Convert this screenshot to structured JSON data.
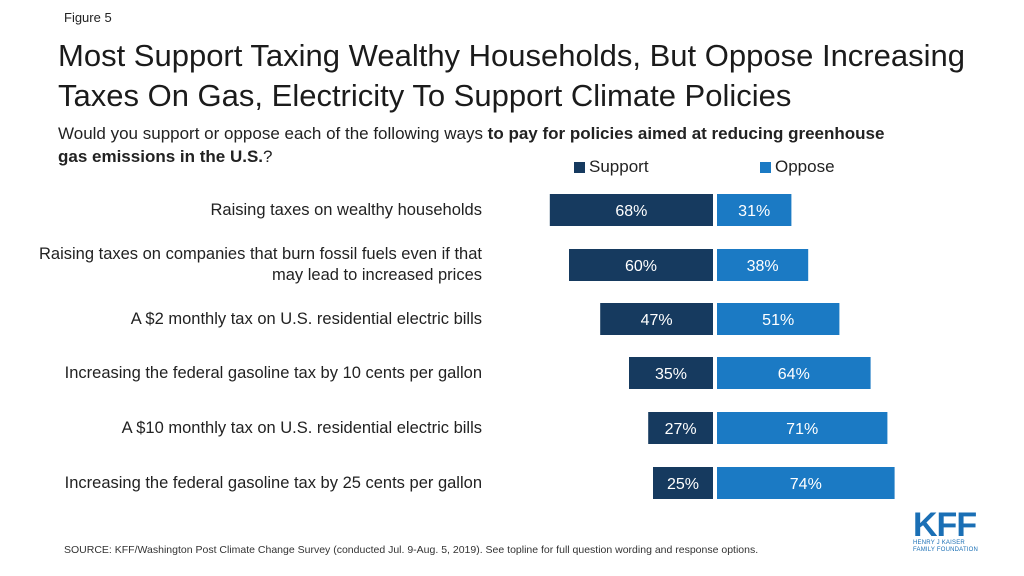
{
  "figure_label": "Figure 5",
  "title": "Most Support Taxing Wealthy Households, But Oppose Increasing Taxes On Gas, Electricity To Support Climate Policies",
  "subtitle": {
    "pre": "Would you support or oppose each of the following ways ",
    "bold": "to pay for policies aimed at reducing greenhouse gas emissions in the U.S.",
    "post": "?"
  },
  "colors": {
    "support": "#163a5f",
    "oppose": "#1b7ac4",
    "label_text": "#ffffff"
  },
  "chart_data": {
    "type": "bar",
    "orientation": "horizontal-diverging",
    "categories": [
      "Raising taxes on wealthy households",
      "Raising taxes on companies that burn fossil fuels even if that may lead to increased prices",
      "A $2 monthly tax on U.S. residential electric bills",
      "Increasing the federal gasoline tax by 10 cents per gallon",
      "A $10 monthly tax on U.S. residential electric bills",
      "Increasing the federal gasoline tax by 25 cents per gallon"
    ],
    "series": [
      {
        "name": "Support",
        "values": [
          68,
          60,
          47,
          35,
          27,
          25
        ],
        "labels": [
          "68%",
          "60%",
          "47%",
          "35%",
          "27%",
          "25%"
        ]
      },
      {
        "name": "Oppose",
        "values": [
          31,
          38,
          51,
          64,
          71,
          74
        ],
        "labels": [
          "31%",
          "38%",
          "51%",
          "64%",
          "71%",
          "74%"
        ]
      }
    ],
    "legend": [
      "Support",
      "Oppose"
    ],
    "legend_position": "top"
  },
  "footer": "SOURCE: KFF/Washington Post Climate Change Survey (conducted Jul. 9-Aug. 5, 2019). See topline for full question wording and response options.",
  "logo": {
    "main": "KFF",
    "line1": "HENRY J KAISER",
    "line2": "FAMILY FOUNDATION"
  }
}
